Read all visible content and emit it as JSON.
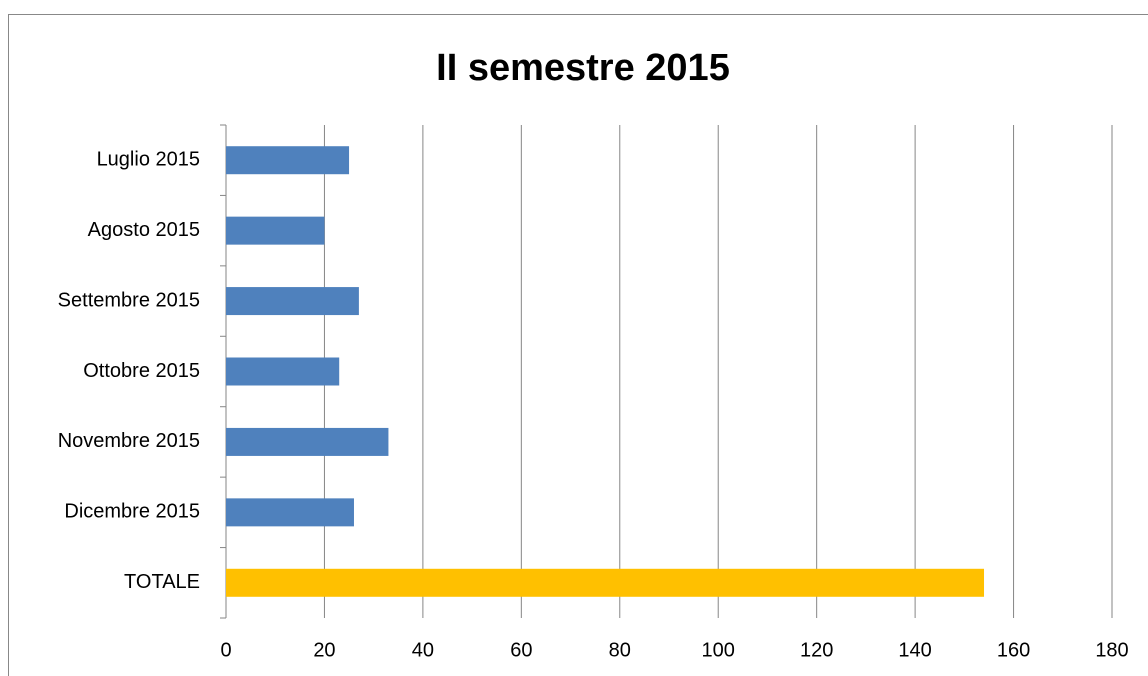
{
  "chart_data": {
    "type": "bar",
    "orientation": "horizontal",
    "title": "II semestre 2015",
    "categories": [
      "Luglio 2015",
      "Agosto 2015",
      "Settembre 2015",
      "Ottobre 2015",
      "Novembre 2015",
      "Dicembre 2015",
      "TOTALE"
    ],
    "values": [
      25,
      20,
      27,
      23,
      33,
      26,
      154
    ],
    "colors": [
      "#4f81bd",
      "#4f81bd",
      "#4f81bd",
      "#4f81bd",
      "#4f81bd",
      "#4f81bd",
      "#ffc000"
    ],
    "xlim": [
      0,
      180
    ],
    "xticks": [
      0,
      20,
      40,
      60,
      80,
      100,
      120,
      140,
      160,
      180
    ],
    "grid": true
  }
}
